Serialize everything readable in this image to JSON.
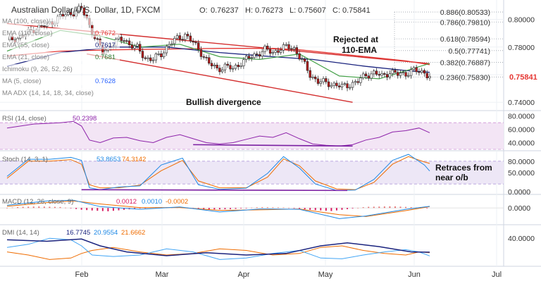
{
  "header": {
    "title": "Australian Dollar/U.S. Dollar, 1D, FXCM",
    "ohlc": [
      {
        "label": "O:",
        "value": "0.76237"
      },
      {
        "label": "H:",
        "value": "0.76273"
      },
      {
        "label": "L:",
        "value": "0.75607"
      },
      {
        "label": "C:",
        "value": "0.75841"
      }
    ]
  },
  "indicators": [
    {
      "label": "MA (100, close)",
      "value": "",
      "color": "#4a148c"
    },
    {
      "label": "EMA (110, close)",
      "value": "0.7672",
      "color": "#e53935"
    },
    {
      "label": "EMA (55, close)",
      "value": "0.7617",
      "color": "#1a237e"
    },
    {
      "label": "EMA (21, close)",
      "value": "0.7681",
      "color": "#2e7d32"
    },
    {
      "label": "Ichimoku (9, 26, 52, 26)",
      "value": "",
      "color": "#607d8b"
    },
    {
      "label": "MA (5, close)",
      "value": "0.7628",
      "color": "#2962ff"
    },
    {
      "label": "MA ADX (14, 14, 18, 34, close)",
      "value": "",
      "color": "#607d8b"
    }
  ],
  "annotations": {
    "rejected": "Rejected at\n110-EMA",
    "bullish": "Bullish divergence",
    "retraces": "Retraces from\nnear o/b"
  },
  "price_axis": {
    "ticks": [
      "0.80000",
      "0.78000",
      "0.76000",
      "0.74000"
    ],
    "last_price": "0.75841",
    "last_price_color": "#e53935"
  },
  "chart_data": {
    "type": "candlestick",
    "symbol": "AUDUSD",
    "timeframe": "1D",
    "x_axis": [
      "Feb",
      "Mar",
      "Apr",
      "May",
      "Jun",
      "Jul"
    ],
    "ylim": [
      0.735,
      0.812
    ],
    "fib_levels": [
      {
        "label": "0.886(0.80533)",
        "value": 0.80533
      },
      {
        "label": "0.786(0.79810)",
        "value": 0.7981
      },
      {
        "label": "0.618(0.78594)",
        "value": 0.78594
      },
      {
        "label": "0.5(0.77741)",
        "value": 0.77741
      },
      {
        "label": "0.382(0.76887)",
        "value": 0.76887
      },
      {
        "label": "0.236(0.75830)",
        "value": 0.7583
      }
    ],
    "close_path": [
      [
        0,
        0.785
      ],
      [
        5,
        0.787
      ],
      [
        10,
        0.793
      ],
      [
        15,
        0.796
      ],
      [
        20,
        0.802
      ],
      [
        25,
        0.805
      ],
      [
        28,
        0.808
      ],
      [
        31,
        0.796
      ],
      [
        33,
        0.787
      ],
      [
        36,
        0.776
      ],
      [
        38,
        0.78
      ],
      [
        41,
        0.784
      ],
      [
        44,
        0.786
      ],
      [
        46,
        0.782
      ],
      [
        49,
        0.779
      ],
      [
        52,
        0.772
      ],
      [
        55,
        0.771
      ],
      [
        58,
        0.775
      ],
      [
        61,
        0.782
      ],
      [
        64,
        0.786
      ],
      [
        67,
        0.789
      ],
      [
        70,
        0.783
      ],
      [
        73,
        0.776
      ],
      [
        76,
        0.768
      ],
      [
        79,
        0.764
      ],
      [
        82,
        0.766
      ],
      [
        85,
        0.764
      ],
      [
        88,
        0.769
      ],
      [
        91,
        0.772
      ],
      [
        94,
        0.775
      ],
      [
        97,
        0.778
      ],
      [
        100,
        0.776
      ],
      [
        103,
        0.779
      ],
      [
        106,
        0.78
      ],
      [
        108,
        0.779
      ],
      [
        111,
        0.77
      ],
      [
        114,
        0.76
      ],
      [
        117,
        0.755
      ],
      [
        120,
        0.754
      ],
      [
        123,
        0.753
      ],
      [
        126,
        0.751
      ],
      [
        129,
        0.753
      ],
      [
        132,
        0.755
      ],
      [
        135,
        0.76
      ],
      [
        138,
        0.761
      ],
      [
        141,
        0.759
      ],
      [
        144,
        0.762
      ],
      [
        147,
        0.76
      ],
      [
        150,
        0.761
      ],
      [
        153,
        0.763
      ],
      [
        155,
        0.762
      ],
      [
        157,
        0.762
      ],
      [
        159,
        0.7584
      ]
    ],
    "ema110": [
      [
        0,
        0.7735
      ],
      [
        20,
        0.777
      ],
      [
        40,
        0.778
      ],
      [
        60,
        0.7785
      ],
      [
        80,
        0.779
      ],
      [
        100,
        0.779
      ],
      [
        110,
        0.778
      ],
      [
        130,
        0.774
      ],
      [
        150,
        0.77
      ],
      [
        159,
        0.7672
      ]
    ],
    "ema55": [
      [
        0,
        0.766
      ],
      [
        20,
        0.776
      ],
      [
        40,
        0.78
      ],
      [
        60,
        0.78
      ],
      [
        80,
        0.776
      ],
      [
        100,
        0.773
      ],
      [
        115,
        0.771
      ],
      [
        135,
        0.766
      ],
      [
        150,
        0.763
      ],
      [
        159,
        0.7617
      ]
    ],
    "ema21": [
      [
        0,
        0.777
      ],
      [
        20,
        0.792
      ],
      [
        35,
        0.788
      ],
      [
        50,
        0.78
      ],
      [
        65,
        0.782
      ],
      [
        80,
        0.773
      ],
      [
        95,
        0.771
      ],
      [
        110,
        0.775
      ],
      [
        125,
        0.759
      ],
      [
        140,
        0.757
      ],
      [
        159,
        0.7681
      ]
    ],
    "trendline_upper": [
      [
        0,
        0.797
      ],
      [
        159,
        0.768
      ]
    ],
    "trendline_lower": [
      [
        30,
        0.775
      ],
      [
        130,
        0.74
      ]
    ],
    "rsi": {
      "label": "RSI (14, close)",
      "value": "50.2398",
      "ticks": [
        "80.0000",
        "60.0000",
        "40.0000"
      ],
      "ylim": [
        30,
        85
      ],
      "band": [
        30,
        70
      ],
      "values": [
        [
          0,
          62
        ],
        [
          10,
          68
        ],
        [
          20,
          70
        ],
        [
          25,
          72
        ],
        [
          28,
          65
        ],
        [
          31,
          44
        ],
        [
          35,
          40
        ],
        [
          40,
          47
        ],
        [
          45,
          48
        ],
        [
          50,
          43
        ],
        [
          55,
          40
        ],
        [
          60,
          48
        ],
        [
          65,
          52
        ],
        [
          70,
          46
        ],
        [
          75,
          40
        ],
        [
          80,
          38
        ],
        [
          85,
          40
        ],
        [
          90,
          45
        ],
        [
          95,
          50
        ],
        [
          100,
          48
        ],
        [
          105,
          55
        ],
        [
          110,
          46
        ],
        [
          115,
          38
        ],
        [
          120,
          36
        ],
        [
          125,
          35
        ],
        [
          130,
          37
        ],
        [
          135,
          44
        ],
        [
          140,
          48
        ],
        [
          145,
          56
        ],
        [
          150,
          58
        ],
        [
          155,
          62
        ],
        [
          159,
          55
        ]
      ],
      "divergence": [
        [
          70,
          37
        ],
        [
          130,
          35
        ]
      ]
    },
    "stoch": {
      "label": "Stoch (14, 3, 1)",
      "k": "53.8653",
      "d": "74.3142",
      "ticks": [
        "80.0000",
        "50.0000",
        "0.0000"
      ],
      "ylim": [
        0,
        100
      ],
      "band": [
        20,
        80
      ],
      "k_values": [
        [
          0,
          40
        ],
        [
          8,
          85
        ],
        [
          16,
          85
        ],
        [
          24,
          90
        ],
        [
          28,
          82
        ],
        [
          31,
          10
        ],
        [
          35,
          5
        ],
        [
          42,
          12
        ],
        [
          50,
          15
        ],
        [
          58,
          70
        ],
        [
          66,
          88
        ],
        [
          72,
          18
        ],
        [
          80,
          6
        ],
        [
          90,
          9
        ],
        [
          98,
          48
        ],
        [
          104,
          92
        ],
        [
          110,
          62
        ],
        [
          116,
          20
        ],
        [
          124,
          3
        ],
        [
          131,
          4
        ],
        [
          138,
          32
        ],
        [
          145,
          82
        ],
        [
          151,
          98
        ],
        [
          157,
          70
        ],
        [
          159,
          54
        ]
      ],
      "d_values": [
        [
          0,
          35
        ],
        [
          8,
          80
        ],
        [
          16,
          80
        ],
        [
          24,
          84
        ],
        [
          28,
          72
        ],
        [
          31,
          18
        ],
        [
          35,
          10
        ],
        [
          42,
          10
        ],
        [
          50,
          17
        ],
        [
          58,
          55
        ],
        [
          66,
          82
        ],
        [
          72,
          28
        ],
        [
          80,
          10
        ],
        [
          90,
          10
        ],
        [
          98,
          38
        ],
        [
          104,
          86
        ],
        [
          110,
          68
        ],
        [
          116,
          28
        ],
        [
          124,
          7
        ],
        [
          131,
          5
        ],
        [
          138,
          24
        ],
        [
          145,
          72
        ],
        [
          151,
          92
        ],
        [
          157,
          78
        ],
        [
          159,
          74
        ]
      ],
      "divergence": [
        [
          28,
          5
        ],
        [
          128,
          3
        ]
      ]
    },
    "macd": {
      "label": "MACD (12, 26, close, 9)",
      "macd": "0.0012",
      "signal": "0.0010",
      "hist": "-0.0002",
      "ticks": [
        "0.0000"
      ],
      "ylim": [
        -0.012,
        0.008
      ],
      "macd_values": [
        [
          0,
          0.002
        ],
        [
          15,
          0.0052
        ],
        [
          25,
          0.0058
        ],
        [
          35,
          0.001
        ],
        [
          50,
          -0.001
        ],
        [
          65,
          0.0008
        ],
        [
          80,
          -0.003
        ],
        [
          95,
          -0.0008
        ],
        [
          110,
          -0.001
        ],
        [
          125,
          -0.008
        ],
        [
          135,
          -0.006
        ],
        [
          150,
          -0.001
        ],
        [
          159,
          0.0012
        ]
      ],
      "signal_values": [
        [
          0,
          0.0012
        ],
        [
          15,
          0.004
        ],
        [
          25,
          0.0052
        ],
        [
          35,
          0.003
        ],
        [
          50,
          0.0002
        ],
        [
          65,
          0.0003
        ],
        [
          80,
          -0.0018
        ],
        [
          95,
          -0.0014
        ],
        [
          110,
          -0.0008
        ],
        [
          125,
          -0.005
        ],
        [
          135,
          -0.0064
        ],
        [
          150,
          -0.002
        ],
        [
          159,
          0.001
        ]
      ],
      "hist_values": [
        [
          5,
          0.0008
        ],
        [
          12,
          0.0011
        ],
        [
          20,
          0.0007
        ],
        [
          28,
          -0.0013
        ],
        [
          33,
          -0.002
        ],
        [
          38,
          -0.0025
        ],
        [
          45,
          -0.0012
        ],
        [
          55,
          0.0005
        ],
        [
          65,
          0.0005
        ],
        [
          75,
          -0.0012
        ],
        [
          85,
          -0.0008
        ],
        [
          95,
          0.0006
        ],
        [
          105,
          0.0003
        ],
        [
          115,
          -0.0015
        ],
        [
          122,
          -0.0023
        ],
        [
          128,
          -0.0009
        ],
        [
          135,
          0.0008
        ],
        [
          145,
          0.0012
        ],
        [
          152,
          0.0006
        ],
        [
          159,
          -0.0002
        ]
      ]
    },
    "dmi": {
      "label": "DMI (14, 14)",
      "plus_di": "16.7745",
      "minus_di": "20.9554",
      "adx": "21.6662",
      "ticks": [
        "40.0000"
      ],
      "ylim": [
        5,
        55
      ],
      "adx_values": [
        [
          0,
          38
        ],
        [
          15,
          36
        ],
        [
          28,
          39
        ],
        [
          35,
          30
        ],
        [
          45,
          22
        ],
        [
          60,
          17
        ],
        [
          75,
          21
        ],
        [
          90,
          18
        ],
        [
          105,
          20
        ],
        [
          118,
          30
        ],
        [
          128,
          34
        ],
        [
          140,
          29
        ],
        [
          152,
          22
        ],
        [
          159,
          21.7
        ]
      ],
      "plus_values": [
        [
          0,
          28
        ],
        [
          8,
          32
        ],
        [
          16,
          40
        ],
        [
          24,
          38
        ],
        [
          28,
          30
        ],
        [
          32,
          18
        ],
        [
          40,
          16
        ],
        [
          50,
          18
        ],
        [
          60,
          26
        ],
        [
          70,
          22
        ],
        [
          80,
          12
        ],
        [
          90,
          14
        ],
        [
          100,
          20
        ],
        [
          110,
          24
        ],
        [
          118,
          14
        ],
        [
          126,
          13
        ],
        [
          134,
          18
        ],
        [
          142,
          22
        ],
        [
          150,
          25
        ],
        [
          155,
          22
        ],
        [
          159,
          16.8
        ]
      ],
      "minus_values": [
        [
          0,
          22
        ],
        [
          8,
          18
        ],
        [
          16,
          12
        ],
        [
          24,
          14
        ],
        [
          28,
          20
        ],
        [
          32,
          24
        ],
        [
          40,
          28
        ],
        [
          50,
          22
        ],
        [
          60,
          18
        ],
        [
          70,
          20
        ],
        [
          80,
          26
        ],
        [
          90,
          24
        ],
        [
          100,
          18
        ],
        [
          110,
          20
        ],
        [
          118,
          28
        ],
        [
          126,
          30
        ],
        [
          134,
          24
        ],
        [
          142,
          20
        ],
        [
          150,
          18
        ],
        [
          155,
          22
        ],
        [
          159,
          21
        ]
      ]
    }
  }
}
